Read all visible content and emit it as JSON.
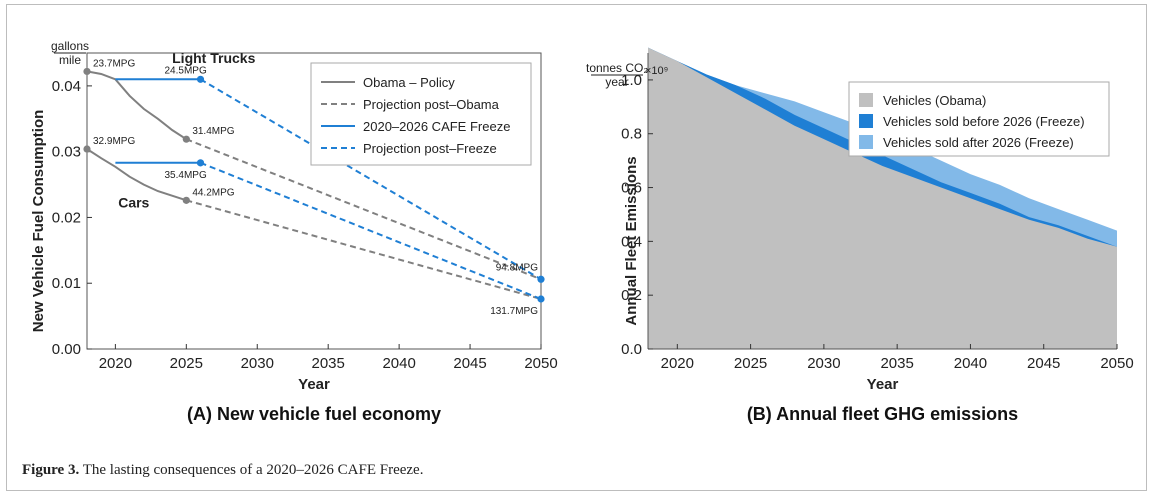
{
  "figure_caption": {
    "label": "Figure 3.",
    "text": "The lasting consequences of a 2020–2026 CAFE Freeze."
  },
  "colors": {
    "obama": "#808080",
    "freeze": "#1f7fd4",
    "freeze_light": "#7ab5e6",
    "area_obama": "#c0c0c0",
    "area_before": "#1f7fd4",
    "area_after": "#82b9e8"
  },
  "chart_data": [
    {
      "type": "line",
      "panel_caption": "(A)  New vehicle fuel economy",
      "xlabel": "Year",
      "ylabel": "New Vehicle Fuel Consumption",
      "unit_top": "gallons",
      "unit_bottom": "mile",
      "xlim": [
        2018,
        2050
      ],
      "ylim": [
        0.0,
        0.045
      ],
      "xticks": [
        "2020",
        "2025",
        "2030",
        "2035",
        "2040",
        "2045",
        "2050"
      ],
      "yticks": [
        "0.00",
        "0.01",
        "0.02",
        "0.03",
        "0.04"
      ],
      "legend_position": "top-right",
      "group_labels": [
        {
          "text": "Light Trucks",
          "x": 2024,
          "y": 0.0435
        },
        {
          "text": "Cars",
          "x": 2020.2,
          "y": 0.0215
        }
      ],
      "series": [
        {
          "name": "Obama – Policy",
          "style": "solid",
          "color": "#808080",
          "lines": [
            [
              [
                2018,
                0.0422
              ],
              [
                2019,
                0.0418
              ],
              [
                2020,
                0.041
              ],
              [
                2021,
                0.0385
              ],
              [
                2022,
                0.0365
              ],
              [
                2023,
                0.035
              ],
              [
                2024,
                0.0333
              ],
              [
                2025,
                0.0319
              ]
            ],
            [
              [
                2018,
                0.0304
              ],
              [
                2019,
                0.029
              ],
              [
                2020,
                0.0277
              ],
              [
                2021,
                0.0262
              ],
              [
                2022,
                0.025
              ],
              [
                2023,
                0.024
              ],
              [
                2024,
                0.0233
              ],
              [
                2025,
                0.0226
              ]
            ]
          ]
        },
        {
          "name": "Projection post–Obama",
          "style": "dashed",
          "color": "#808080",
          "lines": [
            [
              [
                2025,
                0.0319
              ],
              [
                2050,
                0.0106
              ]
            ],
            [
              [
                2025,
                0.0226
              ],
              [
                2050,
                0.0076
              ]
            ]
          ]
        },
        {
          "name": "2020–2026 CAFE Freeze",
          "style": "solid",
          "color": "#1f7fd4",
          "lines": [
            [
              [
                2020,
                0.041
              ],
              [
                2026,
                0.041
              ]
            ],
            [
              [
                2020,
                0.0283
              ],
              [
                2026,
                0.0283
              ]
            ]
          ]
        },
        {
          "name": "Projection post–Freeze",
          "style": "dashed",
          "color": "#1f7fd4",
          "lines": [
            [
              [
                2026,
                0.041
              ],
              [
                2050,
                0.0106
              ]
            ],
            [
              [
                2026,
                0.0283
              ],
              [
                2050,
                0.0076
              ]
            ]
          ]
        }
      ],
      "points": [
        {
          "x": 2018,
          "y": 0.0422,
          "color": "#808080",
          "label": "23.7MPG",
          "anchor": "right-up"
        },
        {
          "x": 2025,
          "y": 0.0319,
          "color": "#808080",
          "label": "31.4MPG",
          "anchor": "right-up"
        },
        {
          "x": 2018,
          "y": 0.0304,
          "color": "#808080",
          "label": "32.9MPG",
          "anchor": "right-up"
        },
        {
          "x": 2025,
          "y": 0.0226,
          "color": "#808080",
          "label": "44.2MPG",
          "anchor": "right-up"
        },
        {
          "x": 2026,
          "y": 0.041,
          "color": "#1f7fd4",
          "label": "24.5MPG",
          "anchor": "up"
        },
        {
          "x": 2026,
          "y": 0.0283,
          "color": "#1f7fd4",
          "label": "35.4MPG",
          "anchor": "down"
        },
        {
          "x": 2050,
          "y": 0.0106,
          "color": "#1f7fd4",
          "label": "94.8MPG",
          "anchor": "left-up"
        },
        {
          "x": 2050,
          "y": 0.0076,
          "color": "#1f7fd4",
          "label": "131.7MPG",
          "anchor": "left-down"
        }
      ]
    },
    {
      "type": "area",
      "panel_caption": "(B)  Annual fleet GHG emissions",
      "xlabel": "Year",
      "ylabel": "Annual Fleet Emissions",
      "unit_top": "tonnes CO₂",
      "unit_bottom": "year",
      "multiplier": "×10⁹",
      "xlim": [
        2018,
        2050
      ],
      "ylim": [
        0.0,
        1.1
      ],
      "xticks": [
        "2020",
        "2025",
        "2030",
        "2035",
        "2040",
        "2045",
        "2050"
      ],
      "yticks": [
        "0.0",
        "0.2",
        "0.4",
        "0.6",
        "0.8",
        "1.0"
      ],
      "legend_position": "top-right",
      "x": [
        2018,
        2020,
        2022,
        2024,
        2026,
        2028,
        2030,
        2032,
        2034,
        2036,
        2038,
        2040,
        2042,
        2044,
        2046,
        2048,
        2050
      ],
      "series": [
        {
          "name": "Vehicles (Obama)",
          "color": "#c0c0c0",
          "values": [
            1.12,
            1.07,
            1.01,
            0.95,
            0.89,
            0.83,
            0.78,
            0.73,
            0.68,
            0.64,
            0.6,
            0.56,
            0.52,
            0.48,
            0.45,
            0.41,
            0.38
          ]
        },
        {
          "name": "Vehicles sold before 2026 (Freeze)",
          "color": "#1f7fd4",
          "values": [
            1.12,
            1.07,
            1.02,
            0.98,
            0.93,
            0.87,
            0.82,
            0.77,
            0.72,
            0.67,
            0.62,
            0.58,
            0.54,
            0.49,
            0.46,
            0.42,
            0.38
          ]
        },
        {
          "name": "Vehicles sold after 2026 (Freeze)",
          "color": "#82b9e8",
          "values": [
            1.12,
            1.07,
            1.02,
            0.98,
            0.95,
            0.92,
            0.88,
            0.84,
            0.79,
            0.75,
            0.7,
            0.65,
            0.61,
            0.56,
            0.52,
            0.48,
            0.44
          ]
        }
      ]
    }
  ]
}
